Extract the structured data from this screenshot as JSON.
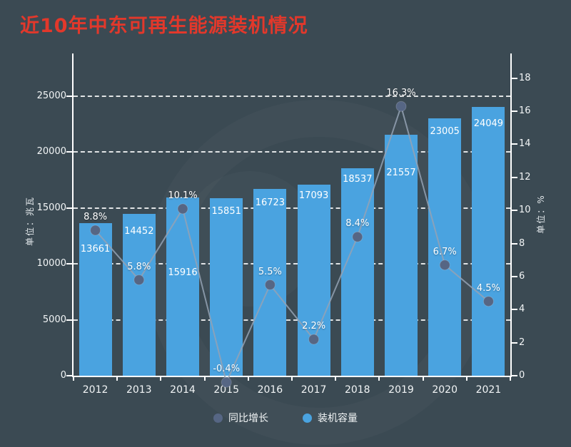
{
  "colors": {
    "background": "#3b4a53",
    "title": "#e2382b",
    "bar": "#4aa3e0",
    "line": "#94a2b4",
    "marker": "#566684",
    "axis": "#ffffff",
    "grid_line": "#ffffff",
    "text": "#f2f5f6"
  },
  "legend": [
    {
      "label": "同比增长",
      "color": "#566684"
    },
    {
      "label": "装机容量",
      "color": "#4aa3e0"
    }
  ],
  "chart_data": {
    "type": "bar+line",
    "title": "近10年中东可再生能源装机情况",
    "categories": [
      "2012",
      "2013",
      "2014",
      "2015",
      "2016",
      "2017",
      "2018",
      "2019",
      "2020",
      "2021"
    ],
    "series": [
      {
        "name": "装机容量",
        "type": "bar",
        "unit": "兆瓦",
        "axis": "left",
        "values": [
          13661,
          14452,
          15916,
          15851,
          16723,
          17093,
          18537,
          21557,
          23005,
          24049
        ]
      },
      {
        "name": "同比增长",
        "type": "line",
        "unit": "%",
        "axis": "right",
        "values": [
          8.8,
          5.8,
          10.1,
          -0.4,
          5.5,
          2.2,
          8.4,
          16.3,
          6.7,
          4.5
        ],
        "labels": [
          "8.8%",
          "5.8%",
          "10.1%",
          "-0.4%",
          "5.5%",
          "2.2%",
          "8.4%",
          "16.3%",
          "6.7%",
          "4.5%"
        ]
      }
    ],
    "left_axis": {
      "label": "单位：兆瓦",
      "ticks": [
        0,
        5000,
        10000,
        15000,
        20000,
        25000
      ],
      "range": [
        0,
        28800
      ]
    },
    "right_axis": {
      "label": "单位：%",
      "ticks": [
        0,
        2,
        4,
        6,
        8,
        10,
        12,
        14,
        16,
        18
      ],
      "range": [
        0,
        19.5
      ]
    },
    "grid": true,
    "grid_style": "dashed",
    "legend_position": "bottom",
    "bar_label_dy": [
      37,
      25,
      106,
      19,
      20,
      16,
      16,
      54,
      19,
      24
    ]
  }
}
